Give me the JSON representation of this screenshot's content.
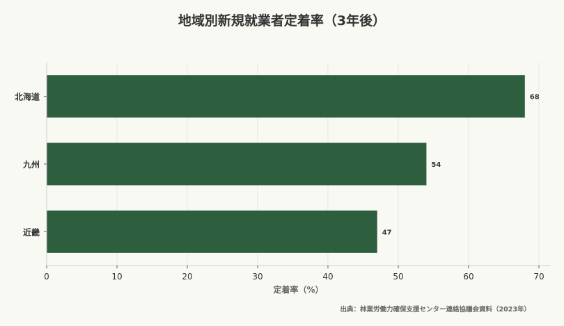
{
  "title": "地域別新規就業者定着率（3年後）",
  "source": "出典：林業労働力確保支援センター連絡協議会資料（2023年）",
  "colors": {
    "bar": "#2d5e3e",
    "background": "#f9f9f4",
    "grid": "#e6e6e0",
    "text": "#333333"
  },
  "chart_data": {
    "type": "bar",
    "orientation": "horizontal",
    "title": "地域別新規就業者定着率（3年後）",
    "xlabel": "定着率（%）",
    "ylabel": "",
    "categories": [
      "北海道",
      "九州",
      "近畿"
    ],
    "values": [
      68,
      54,
      47
    ],
    "xlim": [
      0,
      70
    ],
    "xticks": [
      0,
      10,
      20,
      30,
      40,
      50,
      60,
      70
    ],
    "grid": true,
    "data_labels": true
  }
}
